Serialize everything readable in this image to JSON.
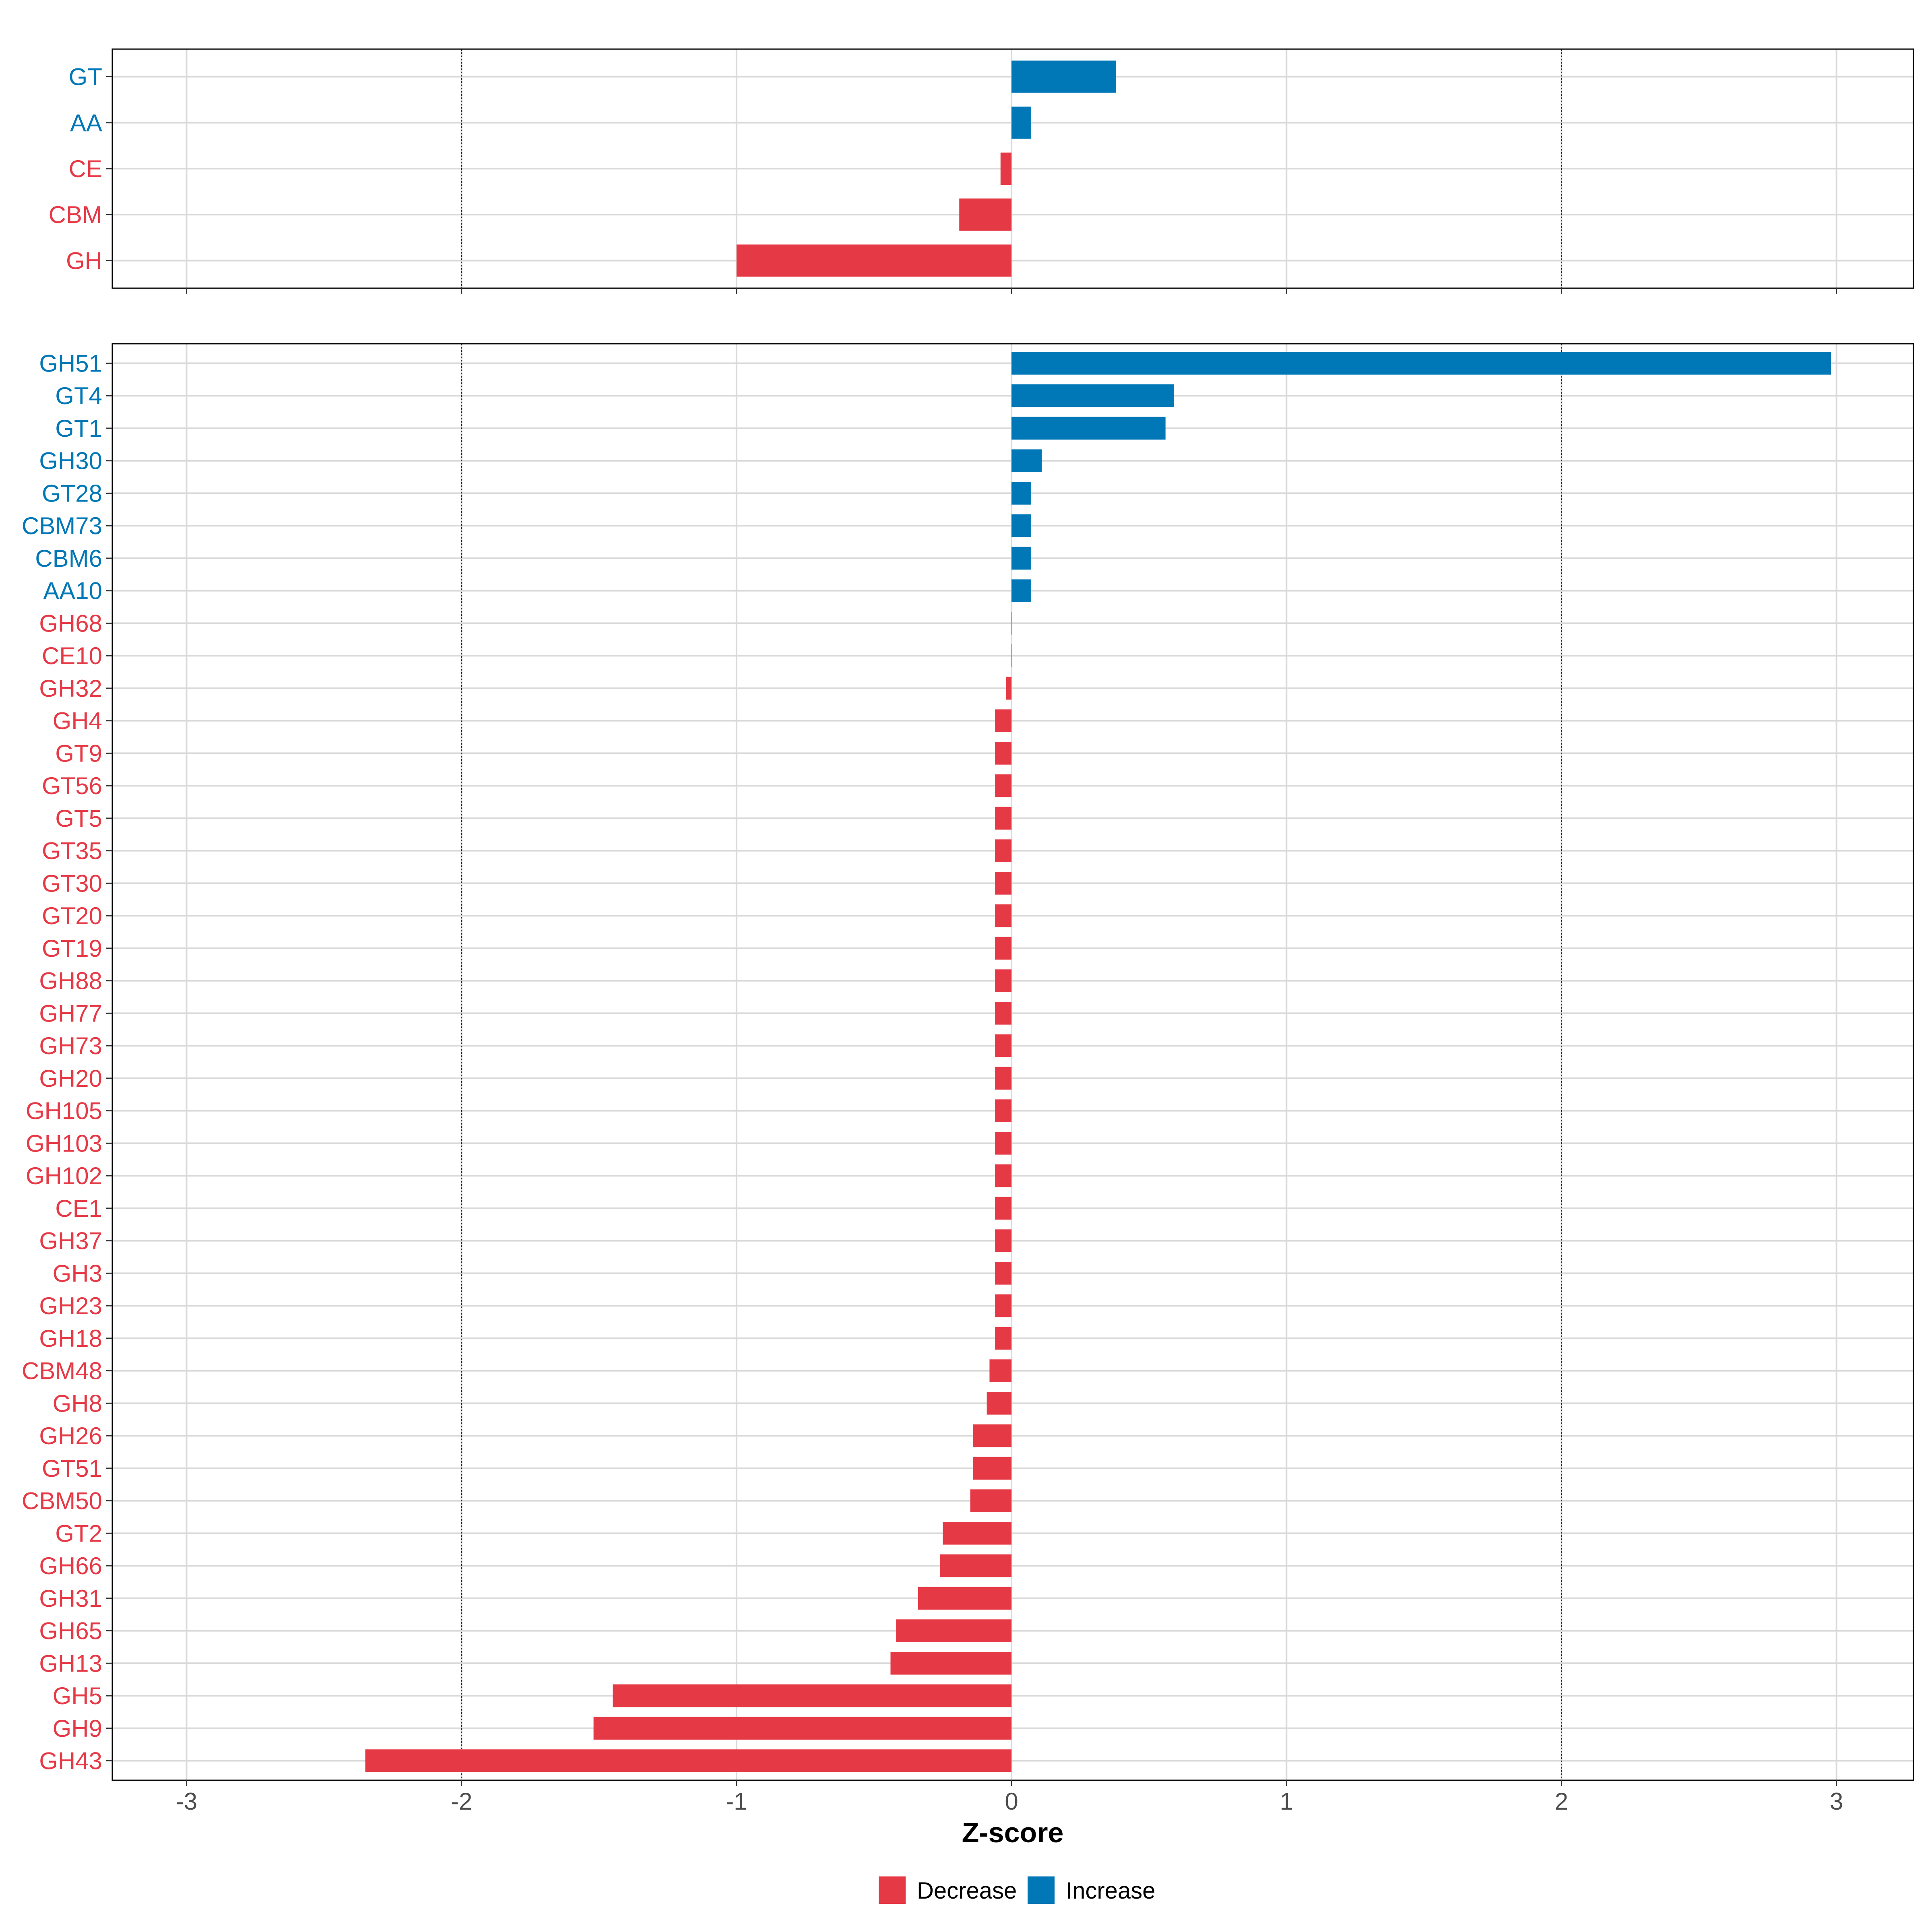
{
  "chart_data": [
    {
      "type": "bar",
      "categories": [
        "GT",
        "AA",
        "CE",
        "CBM",
        "GH"
      ],
      "values": [
        0.38,
        0.07,
        -0.04,
        -0.19,
        -1.0
      ],
      "xlim": [
        -3.27,
        3.28
      ],
      "xticks": [
        -3,
        -2,
        -1,
        0,
        1,
        2,
        3
      ],
      "reference_lines": [
        -2,
        2
      ],
      "grid": true
    },
    {
      "type": "bar",
      "categories": [
        "GH51",
        "GT4",
        "GT1",
        "GH30",
        "GT28",
        "CBM73",
        "CBM6",
        "AA10",
        "GH68",
        "CE10",
        "GH32",
        "GH4",
        "GT9",
        "GT56",
        "GT5",
        "GT35",
        "GT30",
        "GT20",
        "GT19",
        "GH88",
        "GH77",
        "GH73",
        "GH20",
        "GH105",
        "GH103",
        "GH102",
        "CE1",
        "GH37",
        "GH3",
        "GH23",
        "GH18",
        "CBM48",
        "GH8",
        "GH26",
        "GT51",
        "CBM50",
        "GT2",
        "GH66",
        "GH31",
        "GH65",
        "GH13",
        "GH5",
        "GH9",
        "GH43"
      ],
      "values": [
        2.98,
        0.59,
        0.56,
        0.11,
        0.07,
        0.07,
        0.07,
        0.07,
        0.0,
        0.0,
        -0.02,
        -0.06,
        -0.06,
        -0.06,
        -0.06,
        -0.06,
        -0.06,
        -0.06,
        -0.06,
        -0.06,
        -0.06,
        -0.06,
        -0.06,
        -0.06,
        -0.06,
        -0.06,
        -0.06,
        -0.06,
        -0.06,
        -0.06,
        -0.06,
        -0.08,
        -0.09,
        -0.14,
        -0.14,
        -0.15,
        -0.25,
        -0.26,
        -0.34,
        -0.42,
        -0.44,
        -1.45,
        -1.52,
        -2.35
      ],
      "xlim": [
        -3.27,
        3.28
      ],
      "xticks": [
        -3,
        -2,
        -1,
        0,
        1,
        2,
        3
      ],
      "xtick_labels": [
        "-3",
        "-2",
        "-1",
        "0",
        "1",
        "2",
        "3"
      ],
      "reference_lines": [
        -2,
        2
      ],
      "xlabel": "Z-score",
      "grid": true
    }
  ],
  "legend": {
    "position": "bottom",
    "items": [
      {
        "label": "Decrease",
        "color": "#E63946"
      },
      {
        "label": "Increase",
        "color": "#0077B6"
      }
    ]
  }
}
